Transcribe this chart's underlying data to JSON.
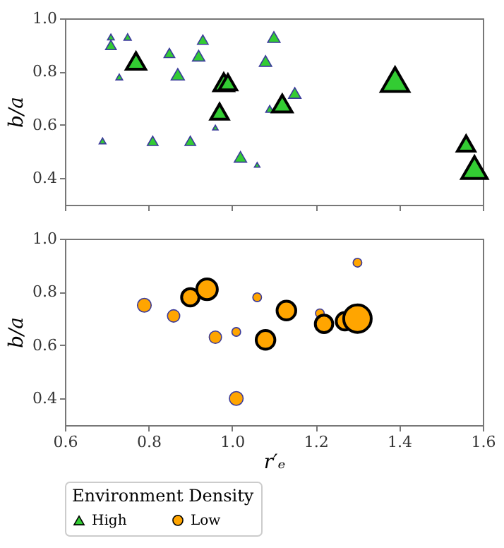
{
  "chart_data": [
    {
      "type": "bubble",
      "ylabel": "b/a",
      "legend_title": "Environment Density",
      "legend": "bottom",
      "grid": false,
      "tick_labels": "y",
      "xlim": [
        0.6,
        1.6
      ],
      "xticks": [
        0.6,
        0.8,
        1,
        1.2,
        1.4,
        1.6
      ],
      "ylim": [
        0.3,
        1.0
      ],
      "yticks": [
        0.4,
        0.6,
        0.8,
        {
          "value": 1.0,
          "label": "1.0"
        }
      ],
      "series": [
        {
          "name": "High",
          "color": "#33cc33",
          "marker": "triangle",
          "x": [
            0.69,
            0.71,
            0.71,
            0.75,
            0.73,
            0.77,
            0.81,
            0.85,
            0.87,
            0.9,
            0.92,
            0.93,
            0.96,
            0.97,
            0.98,
            0.99,
            1.02,
            1.06,
            1.08,
            1.09,
            1.1,
            1.12,
            1.15,
            1.39,
            1.56,
            1.58
          ],
          "values": [
            0.54,
            0.93,
            0.9,
            0.93,
            0.78,
            0.84,
            0.54,
            0.87,
            0.79,
            0.54,
            0.86,
            0.92,
            0.59,
            0.65,
            0.76,
            0.76,
            0.48,
            0.45,
            0.84,
            0.66,
            0.93,
            0.68,
            0.72,
            0.77,
            0.53,
            0.44
          ],
          "sizes": [
            0.06,
            0.06,
            0.15,
            0.07,
            0.06,
            0.48,
            0.15,
            0.15,
            0.23,
            0.15,
            0.2,
            0.15,
            0.04,
            0.4,
            0.5,
            0.4,
            0.2,
            0.04,
            0.2,
            0.08,
            0.2,
            0.5,
            0.2,
            1,
            0.4,
            0.85
          ]
        }
      ]
    },
    {
      "type": "bubble",
      "xlabel": "r′ₑ",
      "ylabel": "b/a",
      "legend": "bottom",
      "grid": false,
      "xlim": [
        0.6,
        1.6
      ],
      "xticks": [
        0.6,
        0.8,
        {
          "value": 1.0,
          "label": "1.0"
        },
        1.2,
        1.4,
        1.6
      ],
      "ylim": [
        0.3,
        1.0
      ],
      "yticks": [
        0.4,
        0.6,
        0.8,
        {
          "value": 1.0,
          "label": "1.0"
        }
      ],
      "series": [
        {
          "name": "Low",
          "color": "#ffa500",
          "marker": "circle",
          "x": [
            0.79,
            0.86,
            0.9,
            0.94,
            0.96,
            1.01,
            1.01,
            1.06,
            1.08,
            1.13,
            1.21,
            1.22,
            1.27,
            1.3,
            1.3
          ],
          "values": [
            0.75,
            0.71,
            0.78,
            0.81,
            0.63,
            0.65,
            0.4,
            0.78,
            0.62,
            0.73,
            0.72,
            0.68,
            0.69,
            0.91,
            0.7
          ],
          "sizes": [
            0.25,
            0.2,
            0.4,
            0.56,
            0.2,
            0.1,
            0.25,
            0.1,
            0.46,
            0.46,
            0.1,
            0.4,
            0.4,
            0.1,
            1
          ]
        }
      ]
    }
  ]
}
